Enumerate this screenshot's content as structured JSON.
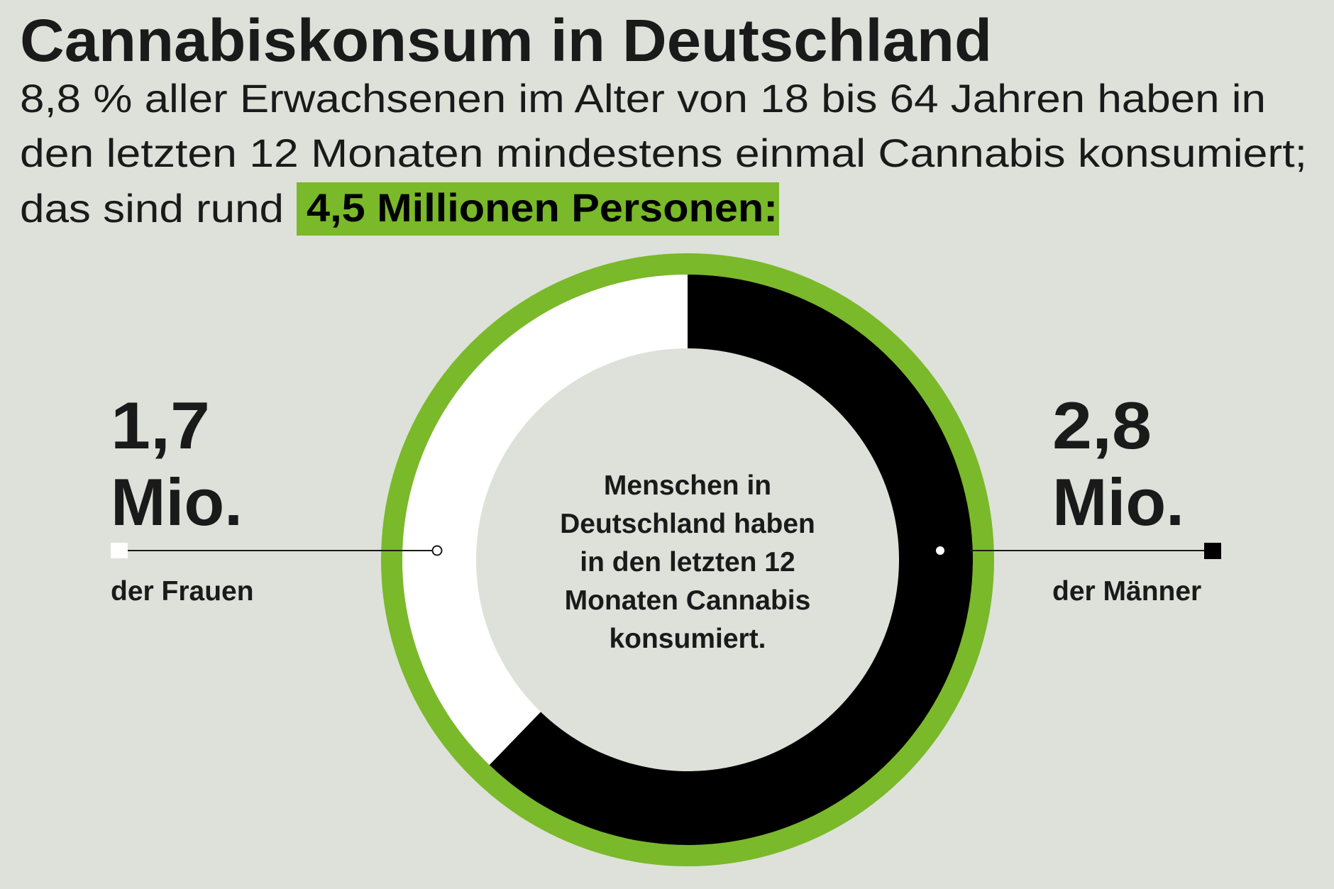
{
  "title": "Cannabiskonsum in Deutschland",
  "subtitle": {
    "line1": "8,8 % aller Erwachsenen im Alter von 18 bis 64 Jahren haben in",
    "line2": "den letzten 12 Monaten mindestens einmal Cannabis konsumiert;",
    "line3": "das sind rund",
    "highlight": "4,5 Millionen Personen:"
  },
  "colors": {
    "background": "#dde1da",
    "accent_green": "#7ab929",
    "women": "#ffffff",
    "men": "#000000"
  },
  "chart_data": {
    "type": "pie",
    "variant": "donut",
    "total": 4.5,
    "unit": "Mio.",
    "slices": [
      {
        "label": "der Frauen",
        "value": 1.7,
        "value_label": "1,7",
        "color": "#ffffff"
      },
      {
        "label": "der Männer",
        "value": 2.8,
        "value_label": "2,8",
        "color": "#000000"
      }
    ],
    "center_text": [
      "Menschen in",
      "Deutschland haben",
      "in den letzten 12",
      "Monaten Cannabis",
      "konsumiert."
    ]
  }
}
